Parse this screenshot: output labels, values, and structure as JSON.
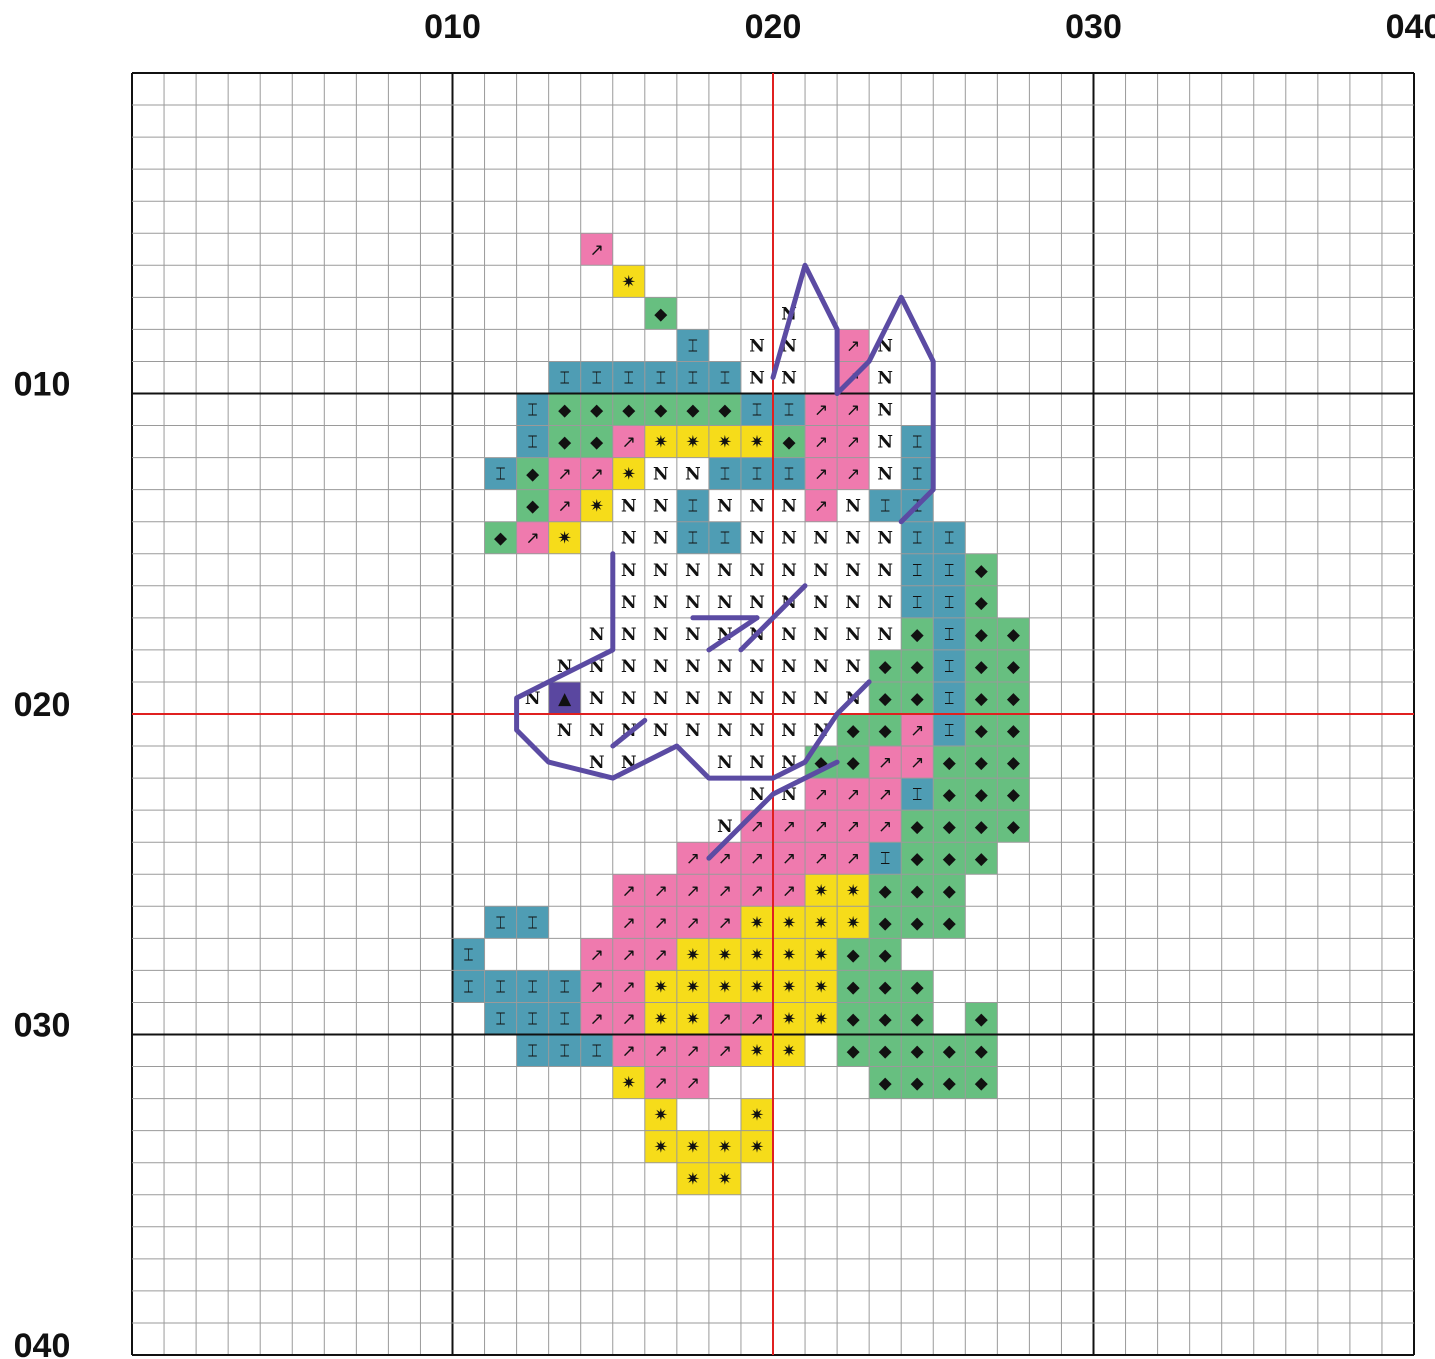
{
  "chart_data": {
    "type": "heatmap",
    "title": "",
    "grid_size": [
      40,
      40
    ],
    "x_tick_labels": [
      "010",
      "020",
      "030",
      "040"
    ],
    "y_tick_labels": [
      "010",
      "020",
      "030",
      "040"
    ],
    "center_lines": {
      "x": 20,
      "y": 20,
      "color": "#e02020"
    },
    "palette": {
      "Y": {
        "name": "yellow",
        "color": "#f6dc1a",
        "symbol": "✷",
        "icon": "star-symbol"
      },
      "P": {
        "name": "pink",
        "color": "#ef7aae",
        "symbol": "↗",
        "icon": "arrow-symbol"
      },
      "G": {
        "name": "green",
        "color": "#67bf80",
        "symbol": "◆",
        "icon": "diamond-symbol"
      },
      "B": {
        "name": "blue",
        "color": "#4f9db4",
        "symbol": "⌶",
        "icon": "h-symbol"
      },
      "W": {
        "name": "white",
        "color": "#ffffff",
        "symbol": "N",
        "icon": "n-symbol"
      },
      "D": {
        "name": "purple",
        "color": "#5a47a0",
        "symbol": "▲",
        "icon": "eye-symbol"
      }
    },
    "backstitch_color": "#5b4ba3",
    "rows": {
      "6": [
        [
          15,
          "P"
        ]
      ],
      "7": [
        [
          16,
          "Y"
        ]
      ],
      "8": [
        [
          17,
          "G"
        ],
        [
          21,
          "W"
        ]
      ],
      "9": [
        [
          18,
          "B"
        ],
        [
          20,
          "W"
        ],
        [
          21,
          "W"
        ],
        [
          23,
          "P"
        ],
        [
          24,
          "W"
        ]
      ],
      "10": [
        [
          14,
          "BBBBBBWW"
        ],
        [
          23,
          "PW"
        ]
      ],
      "11": [
        [
          13,
          "BGGGGGGBBPPW"
        ]
      ],
      "12": [
        [
          13,
          "BGGPYYYYGPPWB"
        ]
      ],
      "13": [
        [
          12,
          "BGPPYWWBBBPPWB"
        ]
      ],
      "14": [
        [
          13,
          "GPYWWBWWWPWBB"
        ]
      ],
      "15": [
        [
          12,
          "GPY"
        ],
        [
          16,
          "WWBBWWWWWBB"
        ]
      ],
      "16": [
        [
          16,
          "WWWWWWWWWBBG"
        ]
      ],
      "17": [
        [
          16,
          "WWWWWWWWWBBG"
        ]
      ],
      "18": [
        [
          15,
          "WWWWWWWWWWGBGG"
        ]
      ],
      "19": [
        [
          14,
          "WWWWWWWWWWGGBGG"
        ]
      ],
      "20": [
        [
          13,
          "WDWWWWWWWWWGGBGG"
        ]
      ],
      "21": [
        [
          14,
          "WWWWWWWWWGGPBGG"
        ]
      ],
      "22": [
        [
          15,
          "WW"
        ],
        [
          19,
          "WWWGGPPGGG"
        ]
      ],
      "23": [
        [
          20,
          "WWPPPBGGG"
        ]
      ],
      "24": [
        [
          19,
          "WPPPPPGGGG"
        ]
      ],
      "25": [
        [
          18,
          "PPPPPPBGGG"
        ]
      ],
      "26": [
        [
          16,
          "PPPPPPYYGGG"
        ]
      ],
      "27": [
        [
          12,
          "BB"
        ],
        [
          16,
          "PPPPYYYYGGG"
        ]
      ],
      "28": [
        [
          11,
          "B"
        ],
        [
          15,
          "PPPYYYYYGG"
        ]
      ],
      "29": [
        [
          11,
          "BBBBPPYYYYYYGGG"
        ]
      ],
      "30": [
        [
          12,
          "BBBPPYYPPYYGGG"
        ],
        [
          27,
          "G"
        ]
      ],
      "31": [
        [
          13,
          "BBBPPPPYY"
        ],
        [
          23,
          "GGGGG"
        ]
      ],
      "32": [
        [
          16,
          "YPP"
        ],
        [
          24,
          "GGGG"
        ]
      ],
      "33": [
        [
          17,
          "Y"
        ],
        [
          20,
          "Y"
        ]
      ],
      "34": [
        [
          17,
          "YYYY"
        ]
      ],
      "35": [
        [
          18,
          "YY"
        ]
      ]
    },
    "backstitch_lines": [
      [
        [
          20,
          9.5
        ],
        [
          21,
          6
        ],
        [
          22,
          8
        ],
        [
          22,
          10
        ]
      ],
      [
        [
          22,
          10
        ],
        [
          23,
          9
        ],
        [
          24,
          7
        ],
        [
          25,
          9
        ],
        [
          25,
          13
        ],
        [
          24,
          14
        ]
      ],
      [
        [
          15,
          15
        ],
        [
          15,
          18
        ],
        [
          13,
          19
        ],
        [
          12,
          19.5
        ],
        [
          12,
          20.5
        ],
        [
          13,
          21.5
        ],
        [
          15,
          22
        ],
        [
          17,
          21
        ],
        [
          18,
          22
        ],
        [
          20,
          22
        ],
        [
          21,
          21.5
        ],
        [
          22,
          20
        ],
        [
          23,
          19
        ]
      ],
      [
        [
          18,
          18
        ],
        [
          19.5,
          17
        ]
      ],
      [
        [
          19,
          18
        ],
        [
          21,
          16
        ]
      ],
      [
        [
          17.5,
          17
        ],
        [
          19.5,
          17
        ]
      ],
      [
        [
          15,
          21
        ],
        [
          16,
          20.2
        ]
      ],
      [
        [
          22,
          21.5
        ],
        [
          20,
          22.5
        ],
        [
          18,
          24.5
        ]
      ]
    ]
  }
}
